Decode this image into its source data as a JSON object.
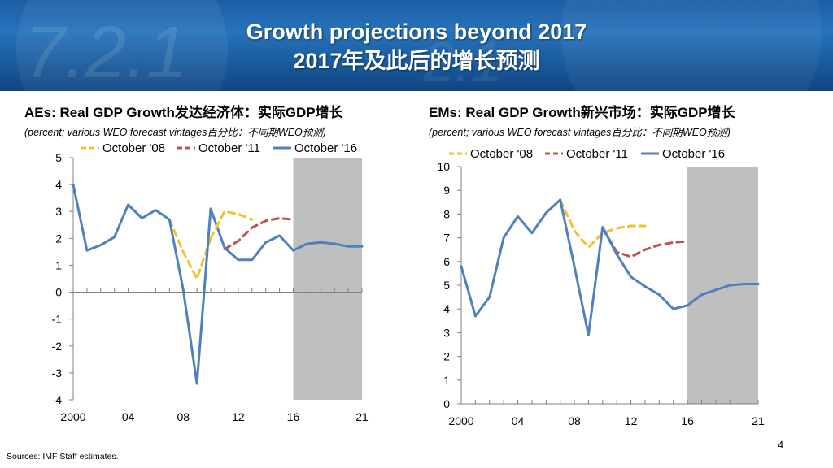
{
  "header": {
    "title_en": "Growth projections beyond 2017",
    "title_zh": "2017年及此后的增长预测"
  },
  "left_panel": {
    "title": "AEs: Real GDP Growth发达经济体：实际GDP增长",
    "subtitle": "(percent; various WEO forecast vintages百分比：不同期WEO预测)"
  },
  "right_panel": {
    "title": "EMs: Real GDP Growth新兴市场：实际GDP增长",
    "subtitle": "(percent; various WEO forecast vintages百分比：不同期WEO预测)"
  },
  "chart_data": [
    {
      "type": "line",
      "title": "AEs: Real GDP Growth",
      "ylim": [
        -4,
        5
      ],
      "yticks": [
        5,
        4,
        3,
        2,
        1,
        0,
        -1,
        -2,
        -3,
        -4
      ],
      "xlim": [
        2000,
        2021
      ],
      "xtick_years": [
        2000,
        2004,
        2008,
        2012,
        2016,
        2021
      ],
      "xtick_labels": [
        "2000",
        "04",
        "08",
        "12",
        "16",
        "21"
      ],
      "shade_from": 2016,
      "shade_to": 2021,
      "zero_axis_value": 0,
      "legend_placement": "top",
      "series": [
        {
          "name": "October '08",
          "color": "#f2c12e",
          "dash": "dashed",
          "x": [
            2007,
            2008,
            2009,
            2010
          ],
          "values": [
            2.7,
            1.5,
            0.5,
            2.0
          ]
        },
        {
          "name": "October '11",
          "color": "#c0504d",
          "dash": "dashed",
          "x": [
            2011,
            2012,
            2013,
            2014,
            2015,
            2016
          ],
          "values": [
            1.6,
            1.9,
            2.4,
            2.65,
            2.75,
            2.7
          ]
        },
        {
          "name": "October '16",
          "color": "#4f81bd",
          "dash": "solid",
          "x": [
            2000,
            2001,
            2002,
            2003,
            2004,
            2005,
            2006,
            2007,
            2008,
            2009,
            2010,
            2011,
            2012,
            2013,
            2014,
            2015,
            2016,
            2017,
            2018,
            2019,
            2020,
            2021
          ],
          "values": [
            4.0,
            1.55,
            1.75,
            2.05,
            3.25,
            2.75,
            3.05,
            2.7,
            0.1,
            -3.4,
            3.1,
            1.65,
            1.2,
            1.2,
            1.85,
            2.1,
            1.55,
            1.8,
            1.85,
            1.8,
            1.7,
            1.7
          ]
        },
        {
          "name": "October '08 (continued)",
          "legend": false,
          "color": "#f2c12e",
          "dash": "dashed",
          "x": [
            2010,
            2011,
            2012,
            2013
          ],
          "values": [
            2.0,
            3.0,
            2.9,
            2.7
          ]
        }
      ]
    },
    {
      "type": "line",
      "title": "EMs: Real GDP Growth",
      "ylim": [
        0,
        10
      ],
      "yticks": [
        10,
        9,
        8,
        7,
        6,
        5,
        4,
        3,
        2,
        1,
        0
      ],
      "xlim": [
        2000,
        2021
      ],
      "xtick_years": [
        2000,
        2004,
        2008,
        2012,
        2016,
        2021
      ],
      "xtick_labels": [
        "2000",
        "04",
        "08",
        "12",
        "16",
        "21"
      ],
      "shade_from": 2016,
      "shade_to": 2021,
      "zero_axis_value": 0,
      "legend_placement": "top",
      "series": [
        {
          "name": "October '08",
          "color": "#f2c12e",
          "dash": "dashed",
          "x": [
            2007,
            2008,
            2009,
            2010,
            2011,
            2012,
            2013
          ],
          "values": [
            8.6,
            7.3,
            6.6,
            7.2,
            7.4,
            7.5,
            7.5
          ]
        },
        {
          "name": "October '11",
          "color": "#c0504d",
          "dash": "dashed",
          "x": [
            2010,
            2011,
            2012,
            2013,
            2014,
            2015,
            2016
          ],
          "values": [
            7.4,
            6.4,
            6.2,
            6.5,
            6.7,
            6.8,
            6.85
          ]
        },
        {
          "name": "October '16",
          "color": "#4f81bd",
          "dash": "solid",
          "x": [
            2000,
            2001,
            2002,
            2003,
            2004,
            2005,
            2006,
            2007,
            2008,
            2009,
            2010,
            2011,
            2012,
            2013,
            2014,
            2015,
            2016,
            2017,
            2018,
            2019,
            2020,
            2021
          ],
          "values": [
            5.8,
            3.7,
            4.5,
            7.0,
            7.9,
            7.2,
            8.05,
            8.6,
            5.8,
            2.9,
            7.45,
            6.3,
            5.35,
            4.95,
            4.6,
            4.0,
            4.15,
            4.6,
            4.8,
            5.0,
            5.05,
            5.05
          ]
        }
      ]
    }
  ],
  "footer": {
    "sources": "Sources: IMF Staff estimates.",
    "page_number": "4"
  }
}
